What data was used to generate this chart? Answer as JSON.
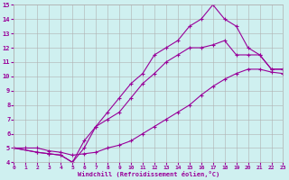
{
  "xlabel": "Windchill (Refroidissement éolien,°C)",
  "bg_color": "#cff0f0",
  "grid_color": "#b0b0b0",
  "line_color": "#990099",
  "xlim": [
    0,
    23
  ],
  "ylim": [
    4,
    15
  ],
  "xticks": [
    0,
    1,
    2,
    3,
    4,
    5,
    6,
    7,
    8,
    9,
    10,
    11,
    12,
    13,
    14,
    15,
    16,
    17,
    18,
    19,
    20,
    21,
    22,
    23
  ],
  "yticks": [
    4,
    5,
    6,
    7,
    8,
    9,
    10,
    11,
    12,
    13,
    14,
    15
  ],
  "line1_x": [
    0,
    1,
    2,
    3,
    4,
    5,
    6,
    7,
    8,
    9,
    10,
    11,
    12,
    13,
    14,
    15,
    16,
    17,
    18,
    19,
    20,
    21,
    22,
    23
  ],
  "line1_y": [
    5,
    5,
    5,
    4.8,
    4.7,
    4.5,
    4.6,
    4.7,
    5.0,
    5.2,
    5.5,
    6.0,
    6.5,
    7.0,
    7.5,
    8.0,
    8.7,
    9.3,
    9.8,
    10.2,
    10.5,
    10.5,
    10.3,
    10.2
  ],
  "line2_x": [
    0,
    2,
    3,
    4,
    5,
    6,
    7,
    8,
    9,
    10,
    11,
    12,
    13,
    14,
    15,
    16,
    17,
    18,
    19,
    20,
    21,
    22,
    23
  ],
  "line2_y": [
    5,
    4.7,
    4.6,
    4.5,
    4.0,
    5.5,
    6.5,
    7.0,
    7.5,
    8.5,
    9.5,
    10.2,
    11.0,
    11.5,
    12.0,
    12.0,
    12.2,
    12.5,
    11.5,
    11.5,
    11.5,
    10.5,
    10.5
  ],
  "line3_x": [
    0,
    2,
    3,
    4,
    5,
    6,
    7,
    8,
    9,
    10,
    11,
    12,
    13,
    14,
    15,
    16,
    17,
    18,
    19,
    20,
    21,
    22,
    23
  ],
  "line3_y": [
    5,
    4.7,
    4.6,
    4.5,
    4.0,
    5.0,
    6.5,
    7.5,
    8.5,
    9.5,
    10.2,
    11.5,
    12.0,
    12.5,
    13.5,
    14.0,
    15.0,
    14.0,
    13.5,
    12.0,
    11.5,
    10.5,
    10.5
  ]
}
